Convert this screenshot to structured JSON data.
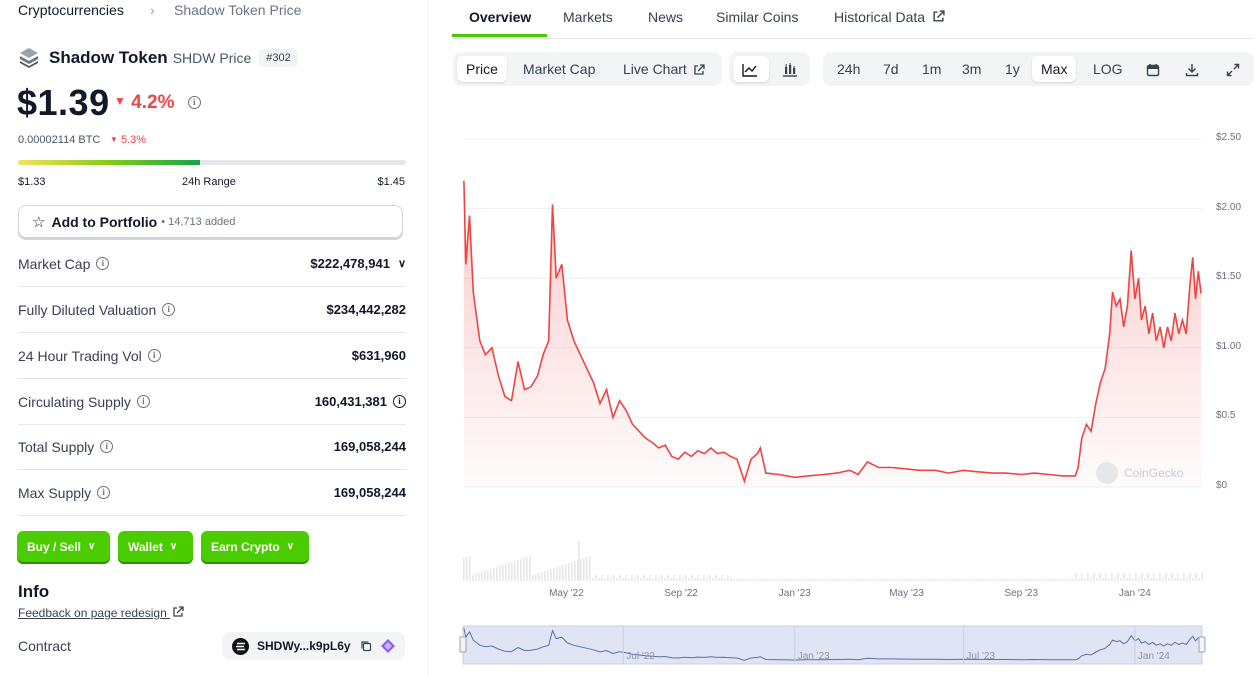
{
  "breadcrumb": {
    "root": "Cryptocurrencies",
    "separator": "›",
    "current": "Shadow Token Price"
  },
  "coin": {
    "name": "Shadow Token",
    "symbol_label": "SHDW Price",
    "rank": "#302",
    "price": "$1.39",
    "change_24h": "4.2%",
    "price_btc": "0.00002114 BTC",
    "change_btc": "5.3%",
    "range_low": "$1.33",
    "range_label": "24h Range",
    "range_high": "$1.45",
    "range_position": 0.47
  },
  "portfolio": {
    "label": "Add to Portfolio",
    "added": "• 14,713 added"
  },
  "stats": [
    {
      "label": "Market Cap",
      "value": "$222,478,941"
    },
    {
      "label": "Fully Diluted Valuation",
      "value": "$234,442,282"
    },
    {
      "label": "24 Hour Trading Vol",
      "value": "$631,960"
    },
    {
      "label": "Circulating Supply",
      "value": "160,431,381"
    },
    {
      "label": "Total Supply",
      "value": "169,058,244"
    },
    {
      "label": "Max Supply",
      "value": "169,058,244"
    }
  ],
  "actions": {
    "buy_sell": "Buy / Sell",
    "wallet": "Wallet",
    "earn": "Earn Crypto"
  },
  "info": {
    "title": "Info",
    "feedback": "Feedback on page redesign",
    "contract_label": "Contract",
    "contract_addr": "SHDWy...k9pL6y"
  },
  "tabs": [
    "Overview",
    "Markets",
    "News",
    "Similar Coins",
    "Historical Data"
  ],
  "toolbar": {
    "chart_types": [
      "Price",
      "Market Cap",
      "Live Chart"
    ],
    "ranges": [
      "24h",
      "7d",
      "1m",
      "3m",
      "1y",
      "Max",
      "LOG"
    ]
  },
  "colors": {
    "accent_green": "#4bcc00",
    "price_line": "#ef4444",
    "negative": "#ef4444"
  },
  "icons": [
    "layers-logo-icon",
    "caret-down-icon",
    "info-icon",
    "star-icon",
    "chevron-down-icon",
    "external-link-icon",
    "line-chart-icon",
    "candlestick-icon",
    "calendar-icon",
    "download-icon",
    "expand-icon",
    "copy-icon",
    "solana-icon"
  ],
  "chart_data": {
    "type": "area",
    "y_axis": [
      "$0",
      "$0.5",
      "$1.00",
      "$1.50",
      "$2.00",
      "$2.50"
    ],
    "ylim": [
      0,
      2.5
    ],
    "x_axis": [
      "May '22",
      "Sep '22",
      "Jan '23",
      "May '23",
      "Sep '23",
      "Jan '24"
    ],
    "navigator_ticks": [
      "Jul '22",
      "Jan '23",
      "Jul '23",
      "Jan '24"
    ],
    "watermark": "CoinGecko",
    "series": [
      {
        "values": [
          [
            "2022-01-11",
            2.2
          ],
          [
            "2022-01-13",
            1.6
          ],
          [
            "2022-01-17",
            1.95
          ],
          [
            "2022-01-21",
            1.4
          ],
          [
            "2022-01-28",
            1.05
          ],
          [
            "2022-02-03",
            0.95
          ],
          [
            "2022-02-10",
            1.0
          ],
          [
            "2022-02-17",
            0.8
          ],
          [
            "2022-02-24",
            0.65
          ],
          [
            "2022-03-03",
            0.62
          ],
          [
            "2022-03-10",
            0.9
          ],
          [
            "2022-03-17",
            0.7
          ],
          [
            "2022-03-24",
            0.72
          ],
          [
            "2022-03-31",
            0.8
          ],
          [
            "2022-04-06",
            0.95
          ],
          [
            "2022-04-12",
            1.05
          ],
          [
            "2022-04-16",
            2.03
          ],
          [
            "2022-04-20",
            1.5
          ],
          [
            "2022-04-26",
            1.6
          ],
          [
            "2022-05-02",
            1.2
          ],
          [
            "2022-05-09",
            1.05
          ],
          [
            "2022-05-16",
            0.95
          ],
          [
            "2022-05-23",
            0.85
          ],
          [
            "2022-05-30",
            0.75
          ],
          [
            "2022-06-06",
            0.6
          ],
          [
            "2022-06-13",
            0.7
          ],
          [
            "2022-06-20",
            0.5
          ],
          [
            "2022-06-27",
            0.62
          ],
          [
            "2022-07-04",
            0.55
          ],
          [
            "2022-07-11",
            0.45
          ],
          [
            "2022-07-18",
            0.4
          ],
          [
            "2022-07-25",
            0.35
          ],
          [
            "2022-08-01",
            0.32
          ],
          [
            "2022-08-08",
            0.28
          ],
          [
            "2022-08-15",
            0.3
          ],
          [
            "2022-08-22",
            0.22
          ],
          [
            "2022-08-29",
            0.2
          ],
          [
            "2022-09-05",
            0.25
          ],
          [
            "2022-09-12",
            0.22
          ],
          [
            "2022-09-19",
            0.26
          ],
          [
            "2022-09-26",
            0.24
          ],
          [
            "2022-10-03",
            0.28
          ],
          [
            "2022-10-10",
            0.24
          ],
          [
            "2022-10-17",
            0.25
          ],
          [
            "2022-10-24",
            0.22
          ],
          [
            "2022-10-31",
            0.2
          ],
          [
            "2022-11-08",
            0.04
          ],
          [
            "2022-11-15",
            0.2
          ],
          [
            "2022-11-22",
            0.24
          ],
          [
            "2022-11-25",
            0.28
          ],
          [
            "2022-12-01",
            0.1
          ],
          [
            "2022-12-15",
            0.09
          ],
          [
            "2023-01-01",
            0.07
          ],
          [
            "2023-01-15",
            0.08
          ],
          [
            "2023-02-01",
            0.09
          ],
          [
            "2023-02-15",
            0.1
          ],
          [
            "2023-03-01",
            0.12
          ],
          [
            "2023-03-10",
            0.09
          ],
          [
            "2023-03-20",
            0.18
          ],
          [
            "2023-04-01",
            0.14
          ],
          [
            "2023-04-15",
            0.14
          ],
          [
            "2023-05-01",
            0.13
          ],
          [
            "2023-05-15",
            0.12
          ],
          [
            "2023-06-01",
            0.12
          ],
          [
            "2023-06-15",
            0.1
          ],
          [
            "2023-07-01",
            0.12
          ],
          [
            "2023-07-15",
            0.11
          ],
          [
            "2023-08-01",
            0.1
          ],
          [
            "2023-08-15",
            0.1
          ],
          [
            "2023-09-01",
            0.09
          ],
          [
            "2023-09-15",
            0.1
          ],
          [
            "2023-10-01",
            0.09
          ],
          [
            "2023-10-15",
            0.08
          ],
          [
            "2023-10-29",
            0.08
          ],
          [
            "2023-11-01",
            0.14
          ],
          [
            "2023-11-05",
            0.35
          ],
          [
            "2023-11-10",
            0.45
          ],
          [
            "2023-11-15",
            0.4
          ],
          [
            "2023-11-20",
            0.6
          ],
          [
            "2023-11-25",
            0.75
          ],
          [
            "2023-11-30",
            0.85
          ],
          [
            "2023-12-05",
            1.1
          ],
          [
            "2023-12-08",
            1.4
          ],
          [
            "2023-12-12",
            1.3
          ],
          [
            "2023-12-16",
            1.35
          ],
          [
            "2023-12-20",
            1.15
          ],
          [
            "2023-12-24",
            1.3
          ],
          [
            "2023-12-28",
            1.7
          ],
          [
            "2024-01-01",
            1.35
          ],
          [
            "2024-01-05",
            1.5
          ],
          [
            "2024-01-08",
            1.2
          ],
          [
            "2024-01-12",
            1.3
          ],
          [
            "2024-01-16",
            1.1
          ],
          [
            "2024-01-20",
            1.25
          ],
          [
            "2024-01-24",
            1.05
          ],
          [
            "2024-01-28",
            1.15
          ],
          [
            "2024-02-01",
            1.0
          ],
          [
            "2024-02-05",
            1.15
          ],
          [
            "2024-02-09",
            1.05
          ],
          [
            "2024-02-13",
            1.25
          ],
          [
            "2024-02-17",
            1.1
          ],
          [
            "2024-02-21",
            1.2
          ],
          [
            "2024-02-25",
            1.1
          ],
          [
            "2024-02-29",
            1.45
          ],
          [
            "2024-03-03",
            1.65
          ],
          [
            "2024-03-06",
            1.35
          ],
          [
            "2024-03-09",
            1.55
          ],
          [
            "2024-03-12",
            1.39
          ]
        ]
      }
    ]
  }
}
